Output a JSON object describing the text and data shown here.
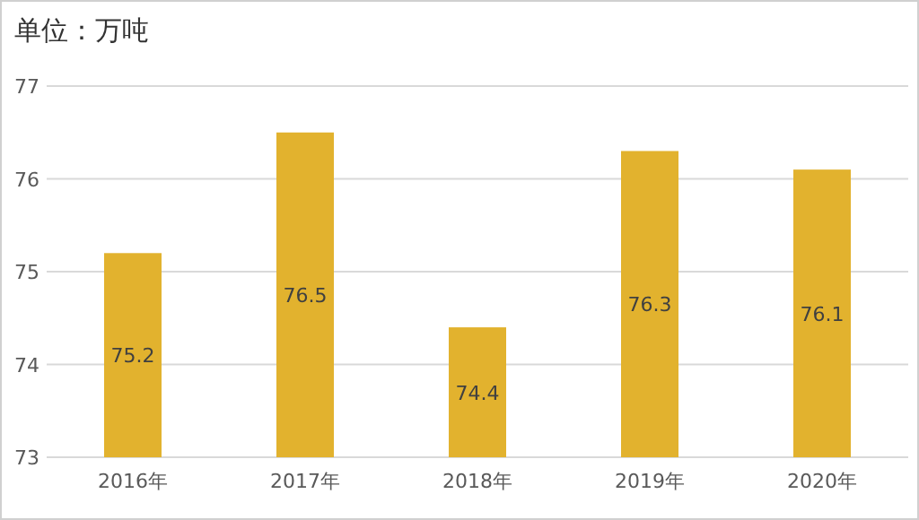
{
  "chart_data": {
    "type": "bar",
    "title": "单位：万吨",
    "categories": [
      "2016年",
      "2017年",
      "2018年",
      "2019年",
      "2020年"
    ],
    "values": [
      75.2,
      76.5,
      74.4,
      76.3,
      76.1
    ],
    "color": "#e2b22e",
    "ylim": [
      73,
      77
    ],
    "yticks": [
      73,
      74,
      75,
      76,
      77
    ],
    "grid": "y",
    "data_labels": true
  }
}
